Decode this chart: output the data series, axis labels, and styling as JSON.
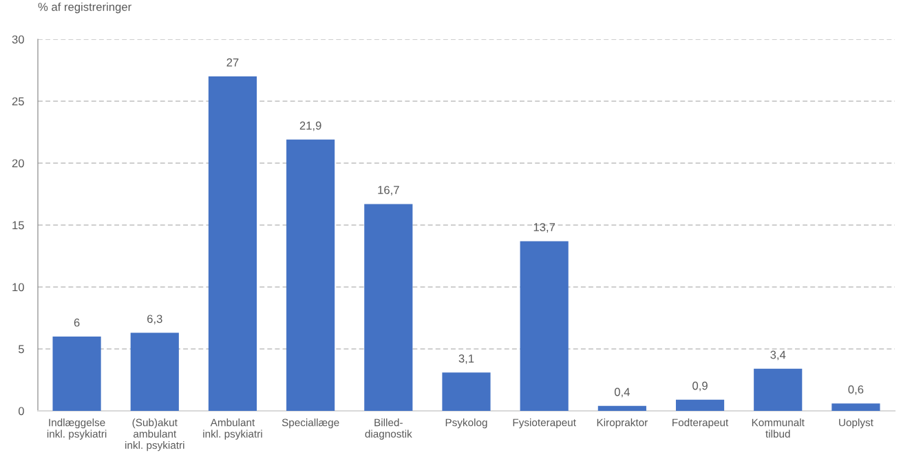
{
  "chart_data": {
    "type": "bar",
    "ylabel": "% af registreringer",
    "categories": [
      "Indlæggelse\ninkl. psykiatri",
      "(Sub)akut\nambulant\ninkl. psykiatri",
      "Ambulant\ninkl. psykiatri",
      "Speciallæge",
      "Billed-\ndiagnostik",
      "Psykolog",
      "Fysioterapeut",
      "Kiropraktor",
      "Fodterapeut",
      "Kommunalt\ntilbud",
      "Uoplyst"
    ],
    "values": [
      6,
      6.3,
      27,
      21.9,
      16.7,
      3.1,
      13.7,
      0.4,
      0.9,
      3.4,
      0.6
    ],
    "value_labels": [
      "6",
      "6,3",
      "27",
      "21,9",
      "16,7",
      "3,1",
      "13,7",
      "0,4",
      "0,9",
      "3,4",
      "0,6"
    ],
    "color": "#4472c4",
    "ylim": [
      0,
      30
    ],
    "yticks": [
      0,
      5,
      10,
      15,
      20,
      25,
      30
    ],
    "grid": "y",
    "legend": false
  }
}
